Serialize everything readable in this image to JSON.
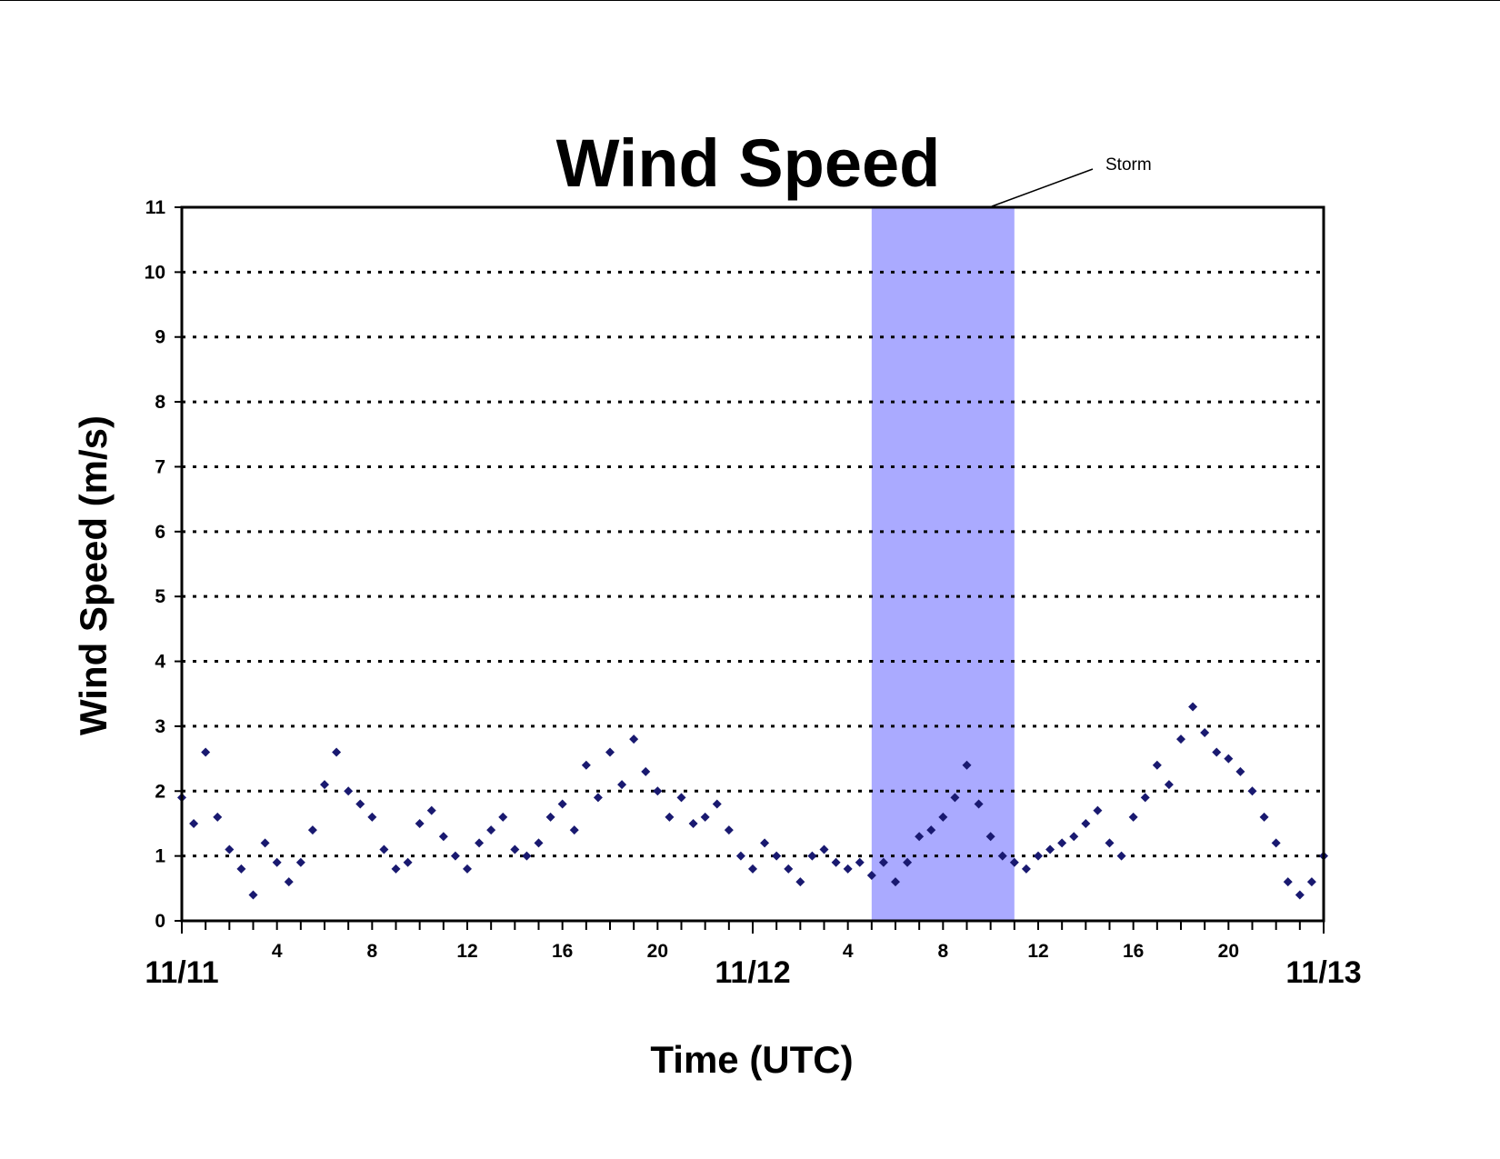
{
  "chart_data": {
    "type": "scatter",
    "title": "Wind Speed",
    "xlabel": "Time (UTC)",
    "ylabel": "Wind Speed (m/s)",
    "ylim": [
      0,
      11
    ],
    "yticks": [
      0,
      1,
      2,
      3,
      4,
      5,
      6,
      7,
      8,
      9,
      10,
      11
    ],
    "xlim": [
      "11/11 00:00",
      "11/13 00:00"
    ],
    "xticks_hour_labels": [
      {
        "day": "11/11",
        "hour": 4,
        "label": "4"
      },
      {
        "day": "11/11",
        "hour": 8,
        "label": "8"
      },
      {
        "day": "11/11",
        "hour": 12,
        "label": "12"
      },
      {
        "day": "11/11",
        "hour": 16,
        "label": "16"
      },
      {
        "day": "11/11",
        "hour": 20,
        "label": "20"
      },
      {
        "day": "11/12",
        "hour": 4,
        "label": "4"
      },
      {
        "day": "11/12",
        "hour": 8,
        "label": "8"
      },
      {
        "day": "11/12",
        "hour": 12,
        "label": "12"
      },
      {
        "day": "11/12",
        "hour": 16,
        "label": "16"
      },
      {
        "day": "11/12",
        "hour": 20,
        "label": "20"
      }
    ],
    "xticks_day_labels": [
      {
        "time": "11/11 00:00",
        "label": "11/11"
      },
      {
        "time": "11/12 00:00",
        "label": "11/12"
      },
      {
        "time": "11/13 00:00",
        "label": "11/13"
      }
    ],
    "grid": "horizontal dotted",
    "marker": "diamond",
    "series_color": "#191970",
    "highlight": {
      "label": "Storm",
      "start": "11/12 05:00",
      "end": "11/12 11:00",
      "color": "#aaaaff"
    },
    "series": [
      {
        "values": [
          [
            "11/11 00:00",
            1.9
          ],
          [
            "11/11 00:30",
            1.5
          ],
          [
            "11/11 01:00",
            2.6
          ],
          [
            "11/11 01:30",
            1.6
          ],
          [
            "11/11 02:00",
            1.1
          ],
          [
            "11/11 02:30",
            0.8
          ],
          [
            "11/11 03:00",
            0.4
          ],
          [
            "11/11 03:30",
            1.2
          ],
          [
            "11/11 04:00",
            0.9
          ],
          [
            "11/11 04:30",
            0.6
          ],
          [
            "11/11 05:00",
            0.9
          ],
          [
            "11/11 05:30",
            1.4
          ],
          [
            "11/11 06:00",
            2.1
          ],
          [
            "11/11 06:30",
            2.6
          ],
          [
            "11/11 07:00",
            2.0
          ],
          [
            "11/11 07:30",
            1.8
          ],
          [
            "11/11 08:00",
            1.6
          ],
          [
            "11/11 08:30",
            1.1
          ],
          [
            "11/11 09:00",
            0.8
          ],
          [
            "11/11 09:30",
            0.9
          ],
          [
            "11/11 10:00",
            1.5
          ],
          [
            "11/11 10:30",
            1.7
          ],
          [
            "11/11 11:00",
            1.3
          ],
          [
            "11/11 11:30",
            1.0
          ],
          [
            "11/11 12:00",
            0.8
          ],
          [
            "11/11 12:30",
            1.2
          ],
          [
            "11/11 13:00",
            1.4
          ],
          [
            "11/11 13:30",
            1.6
          ],
          [
            "11/11 14:00",
            1.1
          ],
          [
            "11/11 14:30",
            1.0
          ],
          [
            "11/11 15:00",
            1.2
          ],
          [
            "11/11 15:30",
            1.6
          ],
          [
            "11/11 16:00",
            1.8
          ],
          [
            "11/11 16:30",
            1.4
          ],
          [
            "11/11 17:00",
            2.4
          ],
          [
            "11/11 17:30",
            1.9
          ],
          [
            "11/11 18:00",
            2.6
          ],
          [
            "11/11 18:30",
            2.1
          ],
          [
            "11/11 19:00",
            2.8
          ],
          [
            "11/11 19:30",
            2.3
          ],
          [
            "11/11 20:00",
            2.0
          ],
          [
            "11/11 20:30",
            1.6
          ],
          [
            "11/11 21:00",
            1.9
          ],
          [
            "11/11 21:30",
            1.5
          ],
          [
            "11/11 22:00",
            1.6
          ],
          [
            "11/11 22:30",
            1.8
          ],
          [
            "11/11 23:00",
            1.4
          ],
          [
            "11/11 23:30",
            1.0
          ],
          [
            "11/12 00:00",
            0.8
          ],
          [
            "11/12 00:30",
            1.2
          ],
          [
            "11/12 01:00",
            1.0
          ],
          [
            "11/12 01:30",
            0.8
          ],
          [
            "11/12 02:00",
            0.6
          ],
          [
            "11/12 02:30",
            1.0
          ],
          [
            "11/12 03:00",
            1.1
          ],
          [
            "11/12 03:30",
            0.9
          ],
          [
            "11/12 04:00",
            0.8
          ],
          [
            "11/12 04:30",
            0.9
          ],
          [
            "11/12 05:00",
            0.7
          ],
          [
            "11/12 05:30",
            0.9
          ],
          [
            "11/12 06:00",
            0.6
          ],
          [
            "11/12 06:30",
            0.9
          ],
          [
            "11/12 07:00",
            1.3
          ],
          [
            "11/12 07:30",
            1.4
          ],
          [
            "11/12 08:00",
            1.6
          ],
          [
            "11/12 08:30",
            1.9
          ],
          [
            "11/12 09:00",
            2.4
          ],
          [
            "11/12 09:30",
            1.8
          ],
          [
            "11/12 10:00",
            1.3
          ],
          [
            "11/12 10:30",
            1.0
          ],
          [
            "11/12 11:00",
            0.9
          ],
          [
            "11/12 11:30",
            0.8
          ],
          [
            "11/12 12:00",
            1.0
          ],
          [
            "11/12 12:30",
            1.1
          ],
          [
            "11/12 13:00",
            1.2
          ],
          [
            "11/12 13:30",
            1.3
          ],
          [
            "11/12 14:00",
            1.5
          ],
          [
            "11/12 14:30",
            1.7
          ],
          [
            "11/12 15:00",
            1.2
          ],
          [
            "11/12 15:30",
            1.0
          ],
          [
            "11/12 16:00",
            1.6
          ],
          [
            "11/12 16:30",
            1.9
          ],
          [
            "11/12 17:00",
            2.4
          ],
          [
            "11/12 17:30",
            2.1
          ],
          [
            "11/12 18:00",
            2.8
          ],
          [
            "11/12 18:30",
            3.3
          ],
          [
            "11/12 19:00",
            2.9
          ],
          [
            "11/12 19:30",
            2.6
          ],
          [
            "11/12 20:00",
            2.5
          ],
          [
            "11/12 20:30",
            2.3
          ],
          [
            "11/12 21:00",
            2.0
          ],
          [
            "11/12 21:30",
            1.6
          ],
          [
            "11/12 22:00",
            1.2
          ],
          [
            "11/12 22:30",
            0.6
          ],
          [
            "11/12 23:00",
            0.4
          ],
          [
            "11/12 23:30",
            0.6
          ],
          [
            "11/13 00:00",
            1.0
          ]
        ]
      }
    ]
  }
}
